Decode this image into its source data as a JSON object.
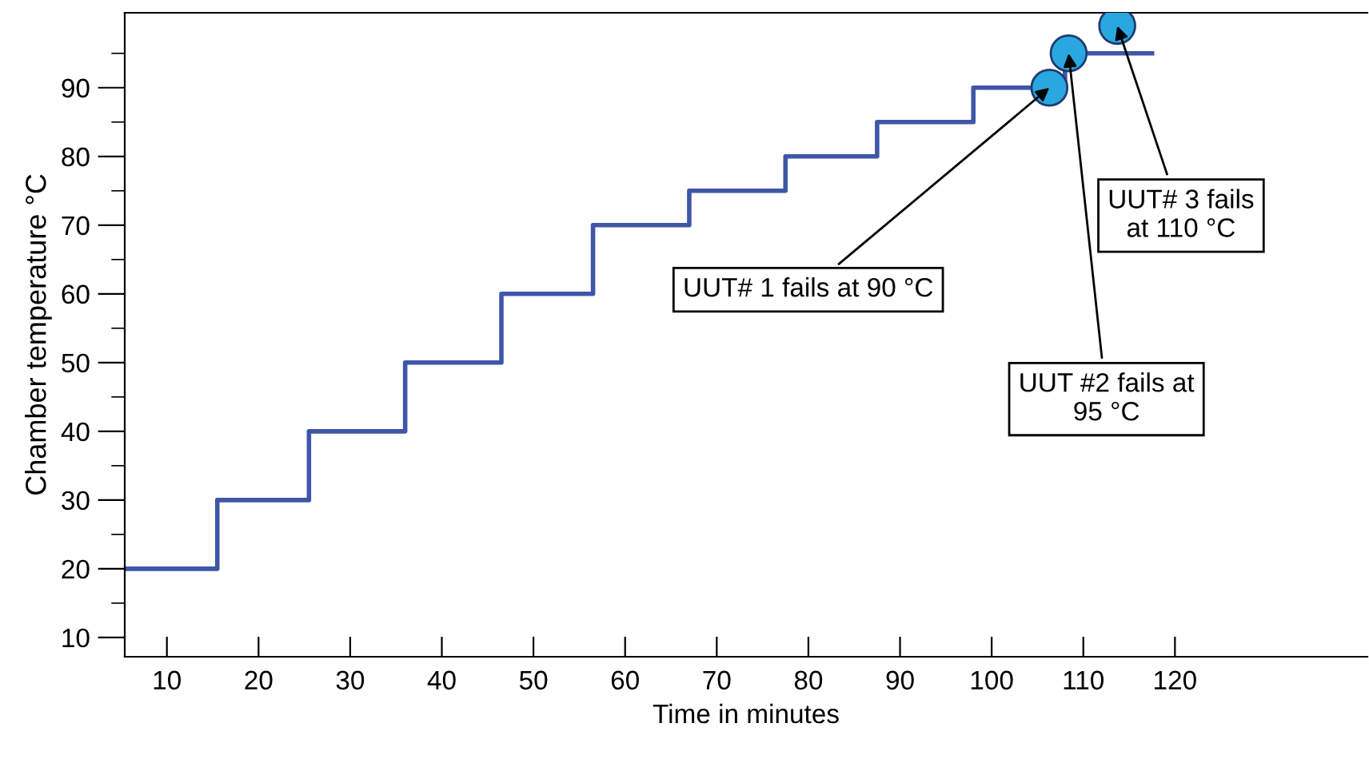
{
  "chart_data": {
    "type": "step",
    "xlabel": "Time in minutes",
    "ylabel": "Chamber temperature °C",
    "series": [
      {
        "color": "#3f56a8",
        "x": [
          5.5,
          15.5,
          25.5,
          36,
          46.5,
          56.5,
          67,
          77.5,
          87.5,
          98,
          108,
          117.5
        ],
        "values": [
          20,
          30,
          40,
          50,
          60,
          70,
          75,
          80,
          85,
          90,
          95,
          95
        ]
      },
      {
        "type": "scatter",
        "color": "#29a8e0",
        "marker": "circle",
        "x": [
          106.3,
          108.4,
          113.7
        ],
        "values": [
          90,
          95,
          99
        ]
      }
    ],
    "annotations": [
      {
        "text": "UUT# 1 fails at 90 °C",
        "x": 106.3,
        "y": 90
      },
      {
        "text": "UUT #2 fails at\n95 °C",
        "x": 108.4,
        "y": 95
      },
      {
        "text": "UUT# 3 fails\nat 110 °C",
        "x": 113.7,
        "y": 99
      }
    ],
    "xlim": [
      5.4,
      141
    ],
    "xticks": [
      10,
      20,
      30,
      40,
      50,
      60,
      70,
      80,
      90,
      100,
      110,
      120
    ],
    "ylim": [
      7.2,
      100.9
    ],
    "yticks": [
      10,
      {
        "value": 15,
        "label": null
      },
      20,
      {
        "value": 25,
        "label": null
      },
      30,
      {
        "value": 35,
        "label": null
      },
      40,
      {
        "value": 45,
        "label": null
      },
      50,
      {
        "value": 55,
        "label": null
      },
      60,
      {
        "value": 65,
        "label": null
      },
      70,
      {
        "value": 75,
        "label": null
      },
      80,
      {
        "value": 85,
        "label": null
      },
      90,
      {
        "value": 95,
        "label": null
      }
    ],
    "grid": false,
    "legend": false
  }
}
